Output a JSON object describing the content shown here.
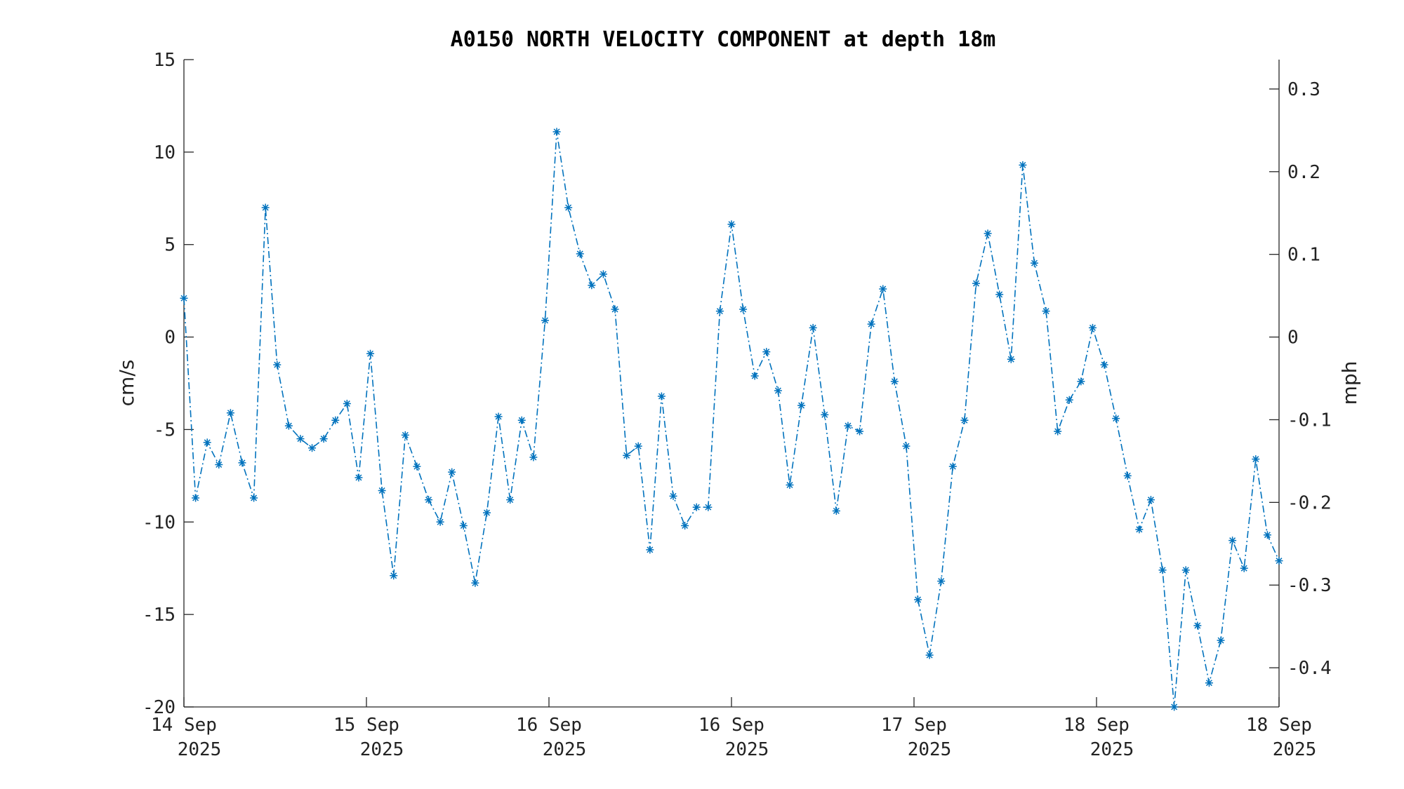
{
  "chart_data": {
    "type": "line",
    "title": "A0150 NORTH VELOCITY COMPONENT at depth 18m",
    "ylabel": "cm/s",
    "y2label": "mph",
    "ylim": [
      -20,
      15
    ],
    "yticks": [
      "15",
      "10",
      "5",
      "0",
      "-5",
      "-10",
      "-15",
      "-20"
    ],
    "y2ticks": [
      "0.3",
      "0.2",
      "0.1",
      "0",
      "-0.1",
      "-0.2",
      "-0.3",
      "-0.4"
    ],
    "xticks": [
      {
        "day": "14 Sep",
        "year": "2025"
      },
      {
        "day": "15 Sep",
        "year": "2025"
      },
      {
        "day": "16 Sep",
        "year": "2025"
      },
      {
        "day": "16 Sep",
        "year": "2025"
      },
      {
        "day": "17 Sep",
        "year": "2025"
      },
      {
        "day": "18 Sep",
        "year": "2025"
      },
      {
        "day": "18 Sep",
        "year": "2025"
      }
    ],
    "grid": false,
    "line_style": "dash-dot",
    "marker": "asterisk",
    "color": "#0072BD",
    "series": [
      {
        "values": [
          2.1,
          -8.7,
          -5.7,
          -6.9,
          -4.1,
          -6.8,
          -8.7,
          7.0,
          -1.5,
          -4.8,
          -5.5,
          -6.0,
          -5.5,
          -4.5,
          -3.6,
          -7.6,
          -0.9,
          -8.3,
          -12.9,
          -5.3,
          -7.0,
          -8.8,
          -10.0,
          -7.3,
          -10.2,
          -13.3,
          -9.5,
          -4.3,
          -8.8,
          -4.5,
          -6.5,
          0.9,
          11.1,
          7.0,
          4.5,
          2.8,
          3.4,
          1.5,
          -6.4,
          -5.9,
          -11.5,
          -3.2,
          -8.6,
          -10.2,
          -9.2,
          -9.2,
          1.4,
          6.1,
          1.5,
          -2.1,
          -0.8,
          -2.9,
          -8.0,
          -3.7,
          0.5,
          -4.2,
          -9.4,
          -4.8,
          -5.1,
          0.7,
          2.6,
          -2.4,
          -5.9,
          -14.2,
          -17.2,
          -13.2,
          -7.0,
          -4.5,
          2.9,
          5.6,
          2.3,
          -1.2,
          9.3,
          4.0,
          1.4,
          -5.1,
          -3.4,
          -2.4,
          0.5,
          -1.5,
          -4.4,
          -7.5,
          -10.4,
          -8.8,
          -12.6,
          -20.0,
          -12.6,
          -15.6,
          -18.7,
          -16.4,
          -11.0,
          -12.5,
          -6.6,
          -10.7,
          -12.1
        ]
      }
    ]
  }
}
